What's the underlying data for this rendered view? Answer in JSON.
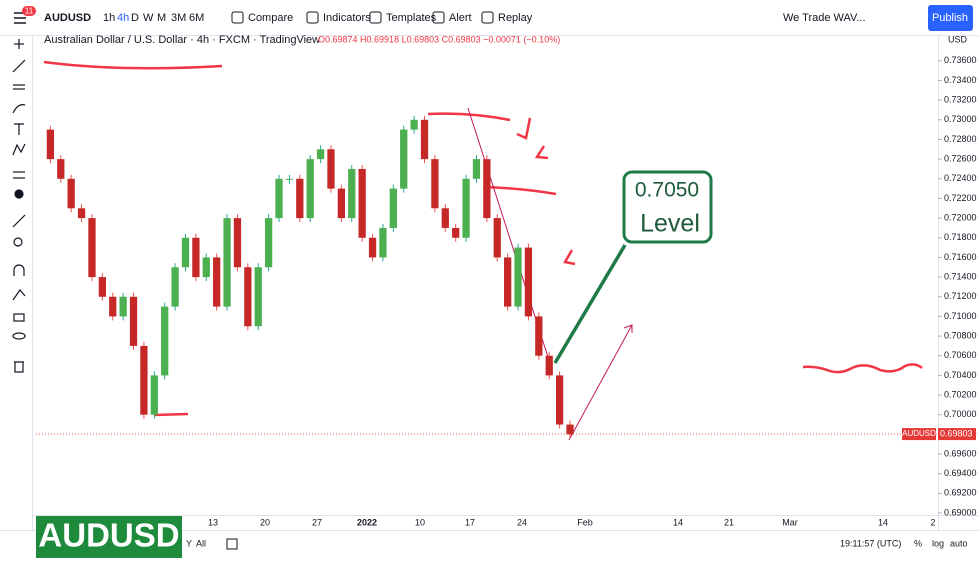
{
  "toolbar": {
    "badge": "11",
    "symbol": "AUDUSD",
    "intervals": [
      "1h",
      "4h",
      "D",
      "W",
      "M",
      "3M",
      "6M"
    ],
    "buttons": [
      "Compare",
      "Indicators",
      "Templates",
      "Alert",
      "Replay"
    ],
    "layout_name": "We Trade WAV...",
    "publish": "Publish"
  },
  "legend": {
    "title": "Australian Dollar / U.S. Dollar · 4h · FXCM · TradingView",
    "ohlc": "O0.69874 H0.69918 L0.69803 C0.69803 −0.00071 (−0.10%)"
  },
  "chart": {
    "type": "candlestick",
    "currency": "USD",
    "closes": [
      0.729,
      0.726,
      0.724,
      0.721,
      0.72,
      0.714,
      0.712,
      0.71,
      0.712,
      0.707,
      0.7,
      0.704,
      0.711,
      0.715,
      0.718,
      0.714,
      0.716,
      0.711,
      0.72,
      0.715,
      0.709,
      0.715,
      0.72,
      0.724,
      0.724,
      0.72,
      0.726,
      0.727,
      0.723,
      0.72,
      0.725,
      0.718,
      0.716,
      0.719,
      0.723,
      0.729,
      0.73,
      0.726,
      0.721,
      0.719,
      0.718,
      0.724,
      0.726,
      0.72,
      0.716,
      0.711,
      0.717,
      0.71,
      0.706,
      0.704,
      0.699,
      0.698
    ],
    "ylim": [
      0.6898,
      0.7371
    ],
    "yticks": [
      {
        "value": 0.736,
        "label": "0.73600"
      },
      {
        "value": 0.734,
        "label": "0.73400"
      },
      {
        "value": 0.732,
        "label": "0.73200"
      },
      {
        "value": 0.73,
        "label": "0.73000"
      },
      {
        "value": 0.728,
        "label": "0.72800"
      },
      {
        "value": 0.726,
        "label": "0.72600"
      },
      {
        "value": 0.724,
        "label": "0.72400"
      },
      {
        "value": 0.722,
        "label": "0.72200"
      },
      {
        "value": 0.72,
        "label": "0.72000"
      },
      {
        "value": 0.718,
        "label": "0.71800"
      },
      {
        "value": 0.716,
        "label": "0.71600"
      },
      {
        "value": 0.714,
        "label": "0.71400"
      },
      {
        "value": 0.712,
        "label": "0.71200"
      },
      {
        "value": 0.71,
        "label": "0.71000"
      },
      {
        "value": 0.708,
        "label": "0.70800"
      },
      {
        "value": 0.706,
        "label": "0.70600"
      },
      {
        "value": 0.704,
        "label": "0.70400"
      },
      {
        "value": 0.702,
        "label": "0.70200"
      },
      {
        "value": 0.7,
        "label": "0.70000"
      },
      {
        "value": 0.698,
        "label": "0.69800"
      },
      {
        "value": 0.696,
        "label": "0.69600"
      },
      {
        "value": 0.694,
        "label": "0.69400"
      },
      {
        "value": 0.692,
        "label": "0.69200"
      },
      {
        "value": 0.69,
        "label": "0.69000"
      }
    ],
    "last": {
      "symbol": "AUDUSD",
      "price": {
        "value": 0.69803,
        "label": "0.69803"
      }
    },
    "xticks": [
      "13",
      "20",
      "27",
      "2022",
      "10",
      "17",
      "24",
      "Feb",
      "14",
      "21",
      "Mar",
      "14",
      "2"
    ]
  },
  "annotation": {
    "price": "0.7050",
    "label": "Level"
  },
  "banner": "AUDUSD",
  "bottom": {
    "ranges": [
      "Y",
      "All"
    ],
    "clock": "19:11:57 (UTC)",
    "toggles": [
      "%",
      "log",
      "auto"
    ]
  }
}
